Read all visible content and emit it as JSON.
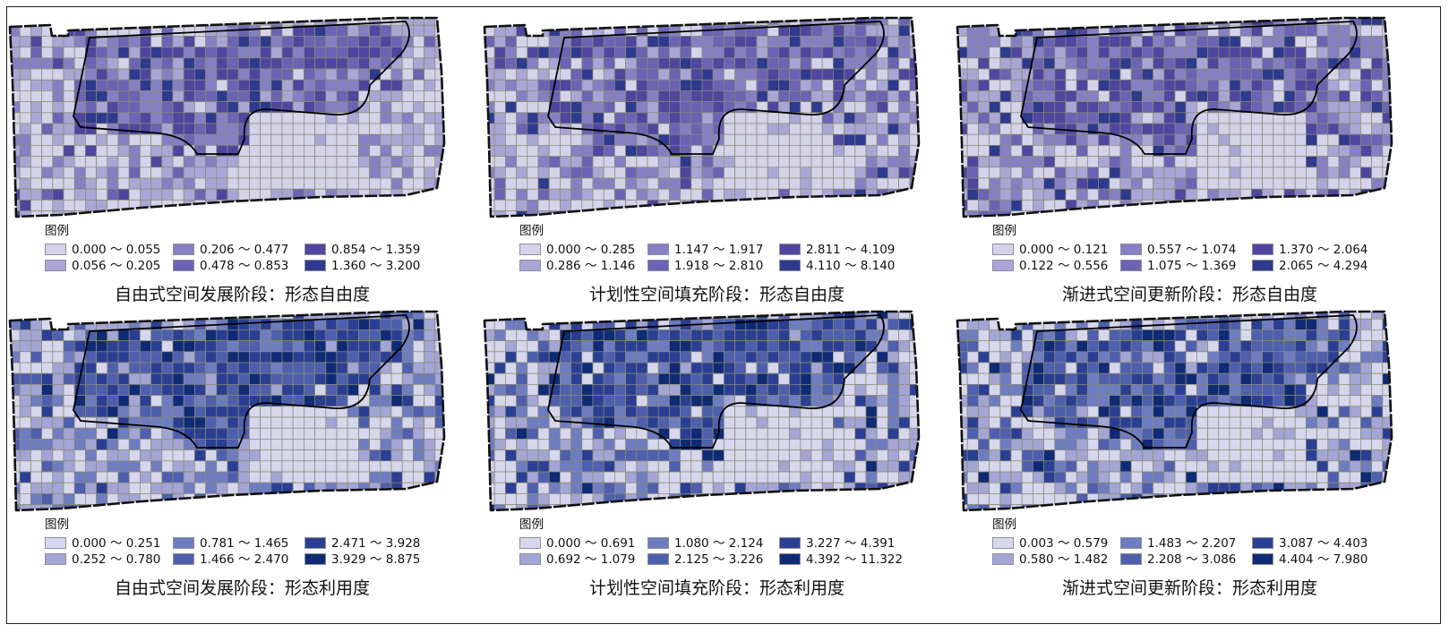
{
  "panels": [
    {
      "title": "自由式空间发展阶段：形态自由度",
      "legend_title": "图例",
      "classes": [
        {
          "label": "0.000 ～ 0.055",
          "color": "#d4d3ea"
        },
        {
          "label": "0.056 ～ 0.205",
          "color": "#a9a6d6"
        },
        {
          "label": "0.206 ～ 0.477",
          "color": "#8580c3"
        },
        {
          "label": "0.478 ～ 0.853",
          "color": "#6b63b3"
        },
        {
          "label": "0.854 ～ 1.359",
          "color": "#4f469f"
        },
        {
          "label": "1.360 ～ 3.200",
          "color": "#2d3a8e"
        }
      ]
    },
    {
      "title": "计划性空间填充阶段：形态自由度",
      "legend_title": "图例",
      "classes": [
        {
          "label": "0.000 ～ 0.285",
          "color": "#d4d3ea"
        },
        {
          "label": "0.286 ～ 1.146",
          "color": "#a9a6d6"
        },
        {
          "label": "1.147 ～ 1.917",
          "color": "#8580c3"
        },
        {
          "label": "1.918 ～ 2.810",
          "color": "#6b63b3"
        },
        {
          "label": "2.811 ～ 4.109",
          "color": "#4f469f"
        },
        {
          "label": "4.110 ～ 8.140",
          "color": "#2d3a8e"
        }
      ]
    },
    {
      "title": "渐进式空间更新阶段：形态自由度",
      "legend_title": "图例",
      "classes": [
        {
          "label": "0.000 ～ 0.121",
          "color": "#d4d3ea"
        },
        {
          "label": "0.122 ～ 0.556",
          "color": "#a9a6d6"
        },
        {
          "label": "0.557 ～ 1.074",
          "color": "#8580c3"
        },
        {
          "label": "1.075 ～ 1.369",
          "color": "#6b63b3"
        },
        {
          "label": "1.370 ～ 2.064",
          "color": "#4f469f"
        },
        {
          "label": "2.065 ～ 4.294",
          "color": "#2d3a8e"
        }
      ]
    },
    {
      "title": "自由式空间发展阶段：形态利用度",
      "legend_title": "图例",
      "classes": [
        {
          "label": "0.000 ～ 0.251",
          "color": "#d6d6ec"
        },
        {
          "label": "0.252 ～ 0.780",
          "color": "#a3a5d5"
        },
        {
          "label": "0.781 ～ 1.465",
          "color": "#6e7cc0"
        },
        {
          "label": "1.466 ～ 2.470",
          "color": "#4e5fae"
        },
        {
          "label": "2.471 ～ 3.928",
          "color": "#2a3f94"
        },
        {
          "label": "3.929 ～ 8.875",
          "color": "#0f2b76"
        }
      ]
    },
    {
      "title": "计划性空间填充阶段：形态利用度",
      "legend_title": "图例",
      "classes": [
        {
          "label": "0.000 ～ 0.691",
          "color": "#d6d6ec"
        },
        {
          "label": "0.692 ～ 1.079",
          "color": "#a3a5d5"
        },
        {
          "label": "1.080 ～ 2.124",
          "color": "#6e7cc0"
        },
        {
          "label": "2.125 ～ 3.226",
          "color": "#4e5fae"
        },
        {
          "label": "3.227 ～ 4.391",
          "color": "#2a3f94"
        },
        {
          "label": "4.392 ～ 11.322",
          "color": "#0f2b76"
        }
      ]
    },
    {
      "title": "渐进式空间更新阶段：形态利用度",
      "legend_title": "图例",
      "classes": [
        {
          "label": "0.003 ～ 0.579",
          "color": "#d6d6ec"
        },
        {
          "label": "0.580 ～ 1.482",
          "color": "#a3a5d5"
        },
        {
          "label": "1.483 ～ 2.207",
          "color": "#6e7cc0"
        },
        {
          "label": "2.208 ～ 3.086",
          "color": "#4e5fae"
        },
        {
          "label": "3.087 ～ 4.403",
          "color": "#2a3f94"
        },
        {
          "label": "4.404 ～ 7.980",
          "color": "#0f2b76"
        }
      ]
    }
  ]
}
